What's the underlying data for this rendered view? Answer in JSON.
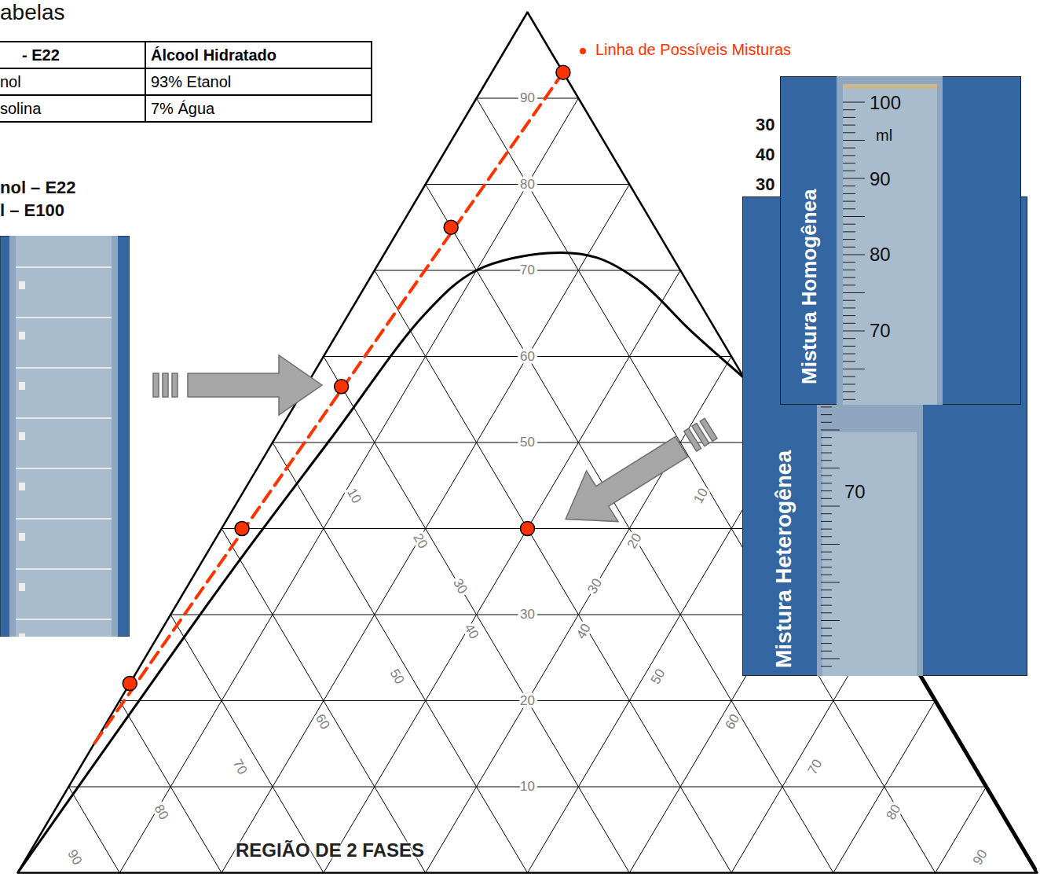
{
  "chart_data": {
    "type": "ternary",
    "range": [
      0,
      100
    ],
    "ticks": [
      10,
      20,
      30,
      40,
      50,
      60,
      70,
      80,
      90
    ],
    "grid": true,
    "center_labels": [
      10,
      20,
      30,
      50,
      60,
      70,
      80,
      90
    ],
    "left_labels": [
      10,
      20,
      30,
      40,
      50,
      60,
      70,
      80,
      90
    ],
    "right_labels": [
      10,
      20,
      30,
      40,
      50,
      60,
      70,
      80,
      90
    ],
    "binodal": {
      "color": "#000000",
      "points": [
        [
          0,
          100,
          0
        ],
        [
          21,
          77,
          2
        ],
        [
          35.5,
          61,
          3.5
        ],
        [
          50.5,
          44,
          5.5
        ],
        [
          65,
          27.5,
          7.5
        ],
        [
          70,
          20,
          10
        ],
        [
          72,
          12,
          16
        ],
        [
          71.5,
          7.5,
          21
        ],
        [
          68.5,
          4.5,
          27
        ],
        [
          63,
          2.5,
          34.5
        ],
        [
          57.5,
          0,
          42.5
        ]
      ]
    },
    "mixture_line": {
      "name": "Linha de Possíveis Misturas",
      "color": "#ff3300",
      "line_style": "dashed",
      "points": [
        [
          93,
          0,
          7
        ],
        [
          15,
          85,
          0
        ]
      ]
    },
    "mixtures": {
      "color": "#ff3300",
      "marker": "circle",
      "points": [
        [
          93,
          0,
          7
        ],
        [
          75,
          20,
          5
        ],
        [
          56.5,
          40,
          3.5
        ],
        [
          40,
          58,
          2
        ],
        [
          22,
          78,
          0
        ],
        [
          40,
          30,
          30
        ]
      ]
    },
    "region_label": "REGIÃO DE 2 FASES"
  },
  "page": {
    "header": "abelas",
    "table": {
      "columns": [
        "- E22",
        "Álcool Hidratado"
      ],
      "rows": [
        [
          "nol",
          "93% Etanol"
        ],
        [
          "solina",
          "7% Água"
        ]
      ]
    },
    "side_labels": [
      "nol – E22",
      "l – E100"
    ],
    "composition": [
      30,
      40,
      30
    ],
    "inset_front": {
      "title": "Mistura Homogênea",
      "unit": "ml",
      "scale": [
        100,
        90,
        80,
        70
      ]
    },
    "inset_back": {
      "title": "Mistura Heterogênea",
      "scale": [
        70
      ]
    }
  }
}
